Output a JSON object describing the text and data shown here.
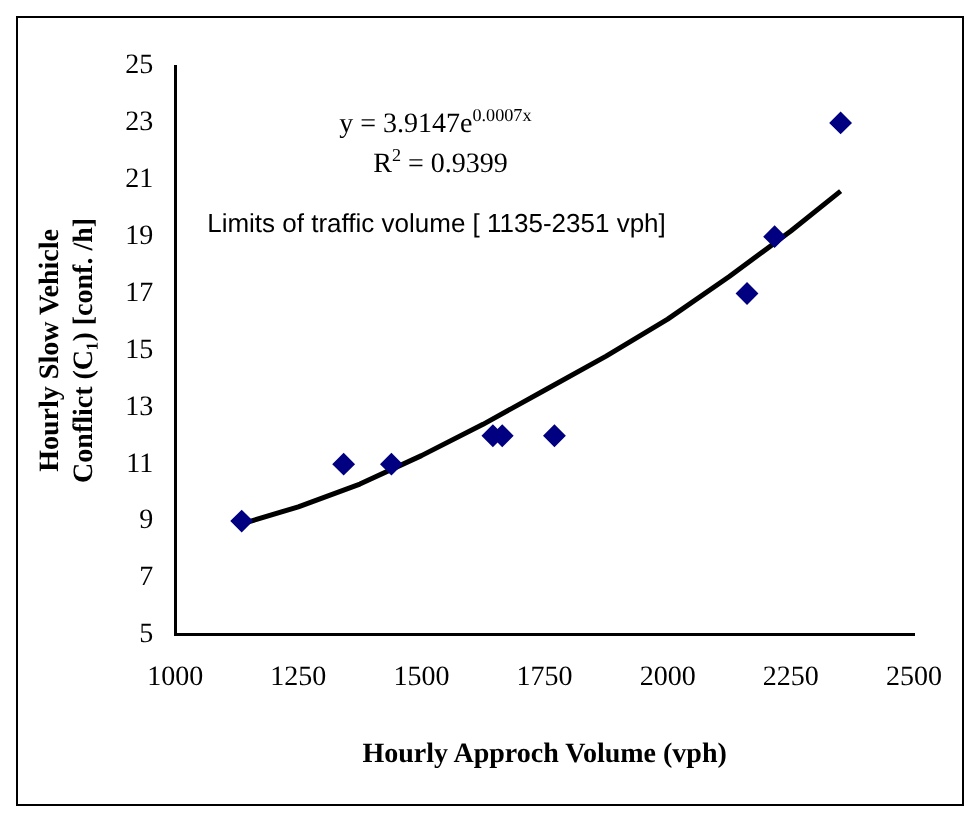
{
  "chart_data": {
    "type": "scatter",
    "xlabel": "Hourly Approch Volume (vph)",
    "ylabel": "Hourly Slow Vehicle Conflict (C₁) [conf. /h]",
    "x": [
      1135,
      1342,
      1439,
      1645,
      1664,
      1770,
      2161,
      2217,
      2351
    ],
    "series": [
      {
        "color": "#000080",
        "values": [
          9,
          11,
          11,
          12,
          12,
          12,
          17,
          19,
          23
        ],
        "marker": "diamond"
      },
      {
        "type": "line",
        "color": "#000000",
        "x": [
          1135,
          1250,
          1375,
          1500,
          1625,
          1750,
          1875,
          2000,
          2125,
          2250,
          2351
        ],
        "values": [
          8.9,
          9.5,
          10.3,
          11.3,
          12.4,
          13.6,
          14.8,
          16.1,
          17.6,
          19.2,
          20.6
        ],
        "marker": "none"
      }
    ],
    "xlim": [
      1000,
      2500
    ],
    "xticks": [
      1000,
      1250,
      1500,
      1750,
      2000,
      2250,
      2500
    ],
    "ylim": [
      5,
      25
    ],
    "yticks": [
      5,
      7,
      9,
      11,
      13,
      15,
      17,
      19,
      21,
      23,
      25
    ],
    "annotations": [
      "y = 3.9147e$^{0.0007x}$",
      "R$^{2}$ = 0.9399",
      "Limits of traffic volume [ 1135-2351 vph]"
    ],
    "grid": false,
    "legend": false
  }
}
